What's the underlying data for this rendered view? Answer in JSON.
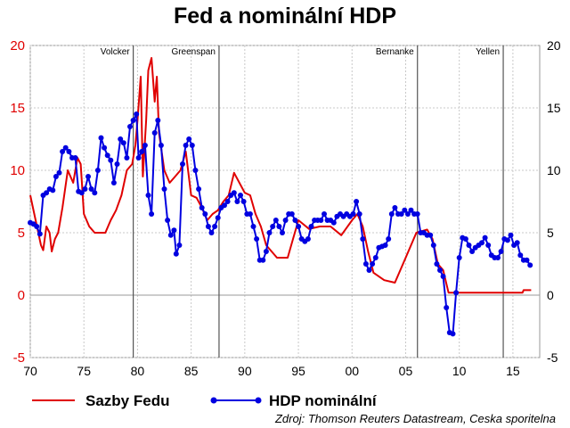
{
  "chart_data": {
    "type": "line",
    "title": "Fed a nominální HDP",
    "xlim": [
      1970,
      2017.5
    ],
    "ylim": [
      -5,
      20
    ],
    "x_ticks": [
      {
        "value": 1970,
        "label": "70"
      },
      {
        "value": 1975,
        "label": "75"
      },
      {
        "value": 1980,
        "label": "80"
      },
      {
        "value": 1985,
        "label": "85"
      },
      {
        "value": 1990,
        "label": "90"
      },
      {
        "value": 1995,
        "label": "95"
      },
      {
        "value": 2000,
        "label": "00"
      },
      {
        "value": 2005,
        "label": "05"
      },
      {
        "value": 2010,
        "label": "10"
      },
      {
        "value": 2015,
        "label": "15"
      }
    ],
    "y_ticks": [
      -5,
      0,
      5,
      10,
      15,
      20
    ],
    "grid": true,
    "vertical_markers": [
      {
        "x": 1979.6,
        "label": "Volcker"
      },
      {
        "x": 1987.6,
        "label": "Greenspan"
      },
      {
        "x": 2006.1,
        "label": "Bernanke"
      },
      {
        "x": 2014.1,
        "label": "Yellen"
      }
    ],
    "legend_position": "bottom",
    "source": "Zdroj: Thomson Reuters Datastream, Ceska sporitelna",
    "series": [
      {
        "name": "Sazby Fedu",
        "color": "#e00000",
        "marker": "none",
        "points": [
          [
            1970.0,
            8.0
          ],
          [
            1970.5,
            6.0
          ],
          [
            1971.0,
            4.0
          ],
          [
            1971.2,
            3.6
          ],
          [
            1971.5,
            5.5
          ],
          [
            1971.8,
            5.0
          ],
          [
            1972.0,
            3.5
          ],
          [
            1972.3,
            4.5
          ],
          [
            1972.6,
            5.0
          ],
          [
            1973.0,
            7.0
          ],
          [
            1973.5,
            10.0
          ],
          [
            1974.0,
            9.0
          ],
          [
            1974.4,
            11.0
          ],
          [
            1974.7,
            10.5
          ],
          [
            1975.0,
            6.5
          ],
          [
            1975.5,
            5.5
          ],
          [
            1976.0,
            5.0
          ],
          [
            1977.0,
            5.0
          ],
          [
            1977.5,
            6.0
          ],
          [
            1978.0,
            6.8
          ],
          [
            1978.5,
            8.0
          ],
          [
            1979.0,
            10.0
          ],
          [
            1979.5,
            10.5
          ],
          [
            1979.8,
            12.0
          ],
          [
            1980.0,
            14.0
          ],
          [
            1980.3,
            17.5
          ],
          [
            1980.5,
            9.5
          ],
          [
            1980.8,
            14.0
          ],
          [
            1981.0,
            18.0
          ],
          [
            1981.3,
            19.0
          ],
          [
            1981.6,
            15.5
          ],
          [
            1981.8,
            17.5
          ],
          [
            1982.0,
            13.0
          ],
          [
            1982.5,
            10.0
          ],
          [
            1983.0,
            9.0
          ],
          [
            1983.5,
            9.5
          ],
          [
            1984.0,
            10.0
          ],
          [
            1984.5,
            11.5
          ],
          [
            1985.0,
            8.0
          ],
          [
            1985.5,
            7.8
          ],
          [
            1986.0,
            7.0
          ],
          [
            1986.5,
            6.0
          ],
          [
            1987.0,
            6.5
          ],
          [
            1987.5,
            6.8
          ],
          [
            1988.0,
            7.5
          ],
          [
            1988.5,
            8.0
          ],
          [
            1989.0,
            9.8
          ],
          [
            1989.5,
            9.0
          ],
          [
            1990.0,
            8.2
          ],
          [
            1990.5,
            8.0
          ],
          [
            1991.0,
            6.5
          ],
          [
            1991.5,
            5.5
          ],
          [
            1992.0,
            4.0
          ],
          [
            1993.0,
            3.0
          ],
          [
            1994.0,
            3.0
          ],
          [
            1994.5,
            4.5
          ],
          [
            1995.0,
            6.0
          ],
          [
            1996.0,
            5.3
          ],
          [
            1997.0,
            5.5
          ],
          [
            1998.0,
            5.5
          ],
          [
            1999.0,
            4.8
          ],
          [
            2000.0,
            6.0
          ],
          [
            2000.5,
            6.5
          ],
          [
            2001.0,
            5.5
          ],
          [
            2001.5,
            3.5
          ],
          [
            2002.0,
            1.8
          ],
          [
            2003.0,
            1.2
          ],
          [
            2004.0,
            1.0
          ],
          [
            2005.0,
            3.0
          ],
          [
            2006.0,
            5.0
          ],
          [
            2007.0,
            5.25
          ],
          [
            2007.5,
            4.5
          ],
          [
            2008.0,
            2.5
          ],
          [
            2008.5,
            2.0
          ],
          [
            2009.0,
            0.2
          ],
          [
            2010.0,
            0.2
          ],
          [
            2012.0,
            0.2
          ],
          [
            2014.0,
            0.2
          ],
          [
            2015.9,
            0.2
          ],
          [
            2016.0,
            0.4
          ],
          [
            2016.7,
            0.4
          ]
        ]
      },
      {
        "name": "HDP nominální",
        "color": "#0000e0",
        "marker": "circle",
        "points": [
          [
            1970.0,
            5.8
          ],
          [
            1970.3,
            5.7
          ],
          [
            1970.6,
            5.5
          ],
          [
            1970.9,
            4.9
          ],
          [
            1971.2,
            8.0
          ],
          [
            1971.5,
            8.2
          ],
          [
            1971.8,
            8.5
          ],
          [
            1972.1,
            8.4
          ],
          [
            1972.4,
            9.5
          ],
          [
            1972.7,
            9.8
          ],
          [
            1973.0,
            11.5
          ],
          [
            1973.3,
            11.8
          ],
          [
            1973.6,
            11.5
          ],
          [
            1973.9,
            11.0
          ],
          [
            1974.2,
            11.0
          ],
          [
            1974.5,
            8.3
          ],
          [
            1974.8,
            8.2
          ],
          [
            1975.1,
            8.5
          ],
          [
            1975.4,
            9.5
          ],
          [
            1975.7,
            8.5
          ],
          [
            1976.0,
            8.2
          ],
          [
            1976.3,
            10.0
          ],
          [
            1976.6,
            12.6
          ],
          [
            1976.9,
            11.8
          ],
          [
            1977.2,
            11.2
          ],
          [
            1977.5,
            10.8
          ],
          [
            1977.8,
            9.0
          ],
          [
            1978.1,
            10.5
          ],
          [
            1978.4,
            12.5
          ],
          [
            1978.7,
            12.2
          ],
          [
            1979.0,
            11.0
          ],
          [
            1979.3,
            13.5
          ],
          [
            1979.6,
            14.0
          ],
          [
            1979.9,
            14.5
          ],
          [
            1980.1,
            11.0
          ],
          [
            1980.4,
            11.5
          ],
          [
            1980.7,
            12.0
          ],
          [
            1981.0,
            8.0
          ],
          [
            1981.3,
            6.5
          ],
          [
            1981.6,
            13.0
          ],
          [
            1981.9,
            14.0
          ],
          [
            1982.2,
            12.0
          ],
          [
            1982.5,
            8.5
          ],
          [
            1982.8,
            6.0
          ],
          [
            1983.1,
            4.8
          ],
          [
            1983.4,
            5.2
          ],
          [
            1983.6,
            3.3
          ],
          [
            1983.9,
            4.0
          ],
          [
            1984.2,
            10.5
          ],
          [
            1984.5,
            12.0
          ],
          [
            1984.8,
            12.5
          ],
          [
            1985.1,
            12.0
          ],
          [
            1985.4,
            10.0
          ],
          [
            1985.7,
            8.5
          ],
          [
            1986.0,
            7.0
          ],
          [
            1986.3,
            6.5
          ],
          [
            1986.6,
            5.5
          ],
          [
            1986.9,
            5.0
          ],
          [
            1987.2,
            5.5
          ],
          [
            1987.5,
            6.2
          ],
          [
            1987.8,
            7.0
          ],
          [
            1988.1,
            7.2
          ],
          [
            1988.4,
            7.5
          ],
          [
            1988.7,
            8.0
          ],
          [
            1989.0,
            8.2
          ],
          [
            1989.3,
            7.5
          ],
          [
            1989.6,
            8.0
          ],
          [
            1989.9,
            7.5
          ],
          [
            1990.2,
            6.5
          ],
          [
            1990.5,
            6.5
          ],
          [
            1990.8,
            5.5
          ],
          [
            1991.1,
            4.5
          ],
          [
            1991.4,
            2.8
          ],
          [
            1991.7,
            2.8
          ],
          [
            1992.0,
            3.5
          ],
          [
            1992.3,
            5.0
          ],
          [
            1992.6,
            5.5
          ],
          [
            1992.9,
            6.0
          ],
          [
            1993.2,
            5.5
          ],
          [
            1993.5,
            5.0
          ],
          [
            1993.8,
            6.0
          ],
          [
            1994.1,
            6.5
          ],
          [
            1994.4,
            6.5
          ],
          [
            1994.7,
            6.0
          ],
          [
            1995.0,
            5.5
          ],
          [
            1995.3,
            4.5
          ],
          [
            1995.6,
            4.3
          ],
          [
            1995.9,
            4.5
          ],
          [
            1996.2,
            5.5
          ],
          [
            1996.5,
            6.0
          ],
          [
            1996.8,
            6.0
          ],
          [
            1997.1,
            6.0
          ],
          [
            1997.4,
            6.5
          ],
          [
            1997.7,
            6.0
          ],
          [
            1998.0,
            6.0
          ],
          [
            1998.3,
            5.8
          ],
          [
            1998.6,
            6.3
          ],
          [
            1998.9,
            6.5
          ],
          [
            1999.2,
            6.3
          ],
          [
            1999.5,
            6.5
          ],
          [
            1999.8,
            6.3
          ],
          [
            2000.1,
            6.5
          ],
          [
            2000.4,
            7.5
          ],
          [
            2000.7,
            6.5
          ],
          [
            2001.0,
            4.5
          ],
          [
            2001.3,
            2.5
          ],
          [
            2001.6,
            2.0
          ],
          [
            2001.9,
            2.5
          ],
          [
            2002.2,
            3.0
          ],
          [
            2002.5,
            3.8
          ],
          [
            2002.8,
            3.9
          ],
          [
            2003.1,
            4.0
          ],
          [
            2003.4,
            4.5
          ],
          [
            2003.7,
            6.5
          ],
          [
            2004.0,
            7.0
          ],
          [
            2004.3,
            6.5
          ],
          [
            2004.6,
            6.5
          ],
          [
            2004.9,
            6.8
          ],
          [
            2005.2,
            6.5
          ],
          [
            2005.5,
            6.8
          ],
          [
            2005.8,
            6.5
          ],
          [
            2006.1,
            6.5
          ],
          [
            2006.4,
            5.0
          ],
          [
            2006.7,
            5.0
          ],
          [
            2007.0,
            4.8
          ],
          [
            2007.3,
            4.8
          ],
          [
            2007.6,
            4.0
          ],
          [
            2007.9,
            2.5
          ],
          [
            2008.2,
            2.0
          ],
          [
            2008.5,
            1.5
          ],
          [
            2008.8,
            -1.0
          ],
          [
            2009.1,
            -3.0
          ],
          [
            2009.4,
            -3.1
          ],
          [
            2009.7,
            0.2
          ],
          [
            2010.0,
            3.0
          ],
          [
            2010.3,
            4.6
          ],
          [
            2010.6,
            4.5
          ],
          [
            2010.9,
            4.0
          ],
          [
            2011.2,
            3.5
          ],
          [
            2011.5,
            3.8
          ],
          [
            2011.8,
            4.0
          ],
          [
            2012.1,
            4.2
          ],
          [
            2012.4,
            4.6
          ],
          [
            2012.7,
            4.0
          ],
          [
            2013.0,
            3.2
          ],
          [
            2013.3,
            3.0
          ],
          [
            2013.6,
            3.0
          ],
          [
            2013.9,
            3.5
          ],
          [
            2014.2,
            4.5
          ],
          [
            2014.5,
            4.4
          ],
          [
            2014.8,
            4.8
          ],
          [
            2015.1,
            4.0
          ],
          [
            2015.4,
            4.2
          ],
          [
            2015.7,
            3.2
          ],
          [
            2016.0,
            2.8
          ],
          [
            2016.3,
            2.8
          ],
          [
            2016.6,
            2.4
          ]
        ]
      }
    ]
  }
}
